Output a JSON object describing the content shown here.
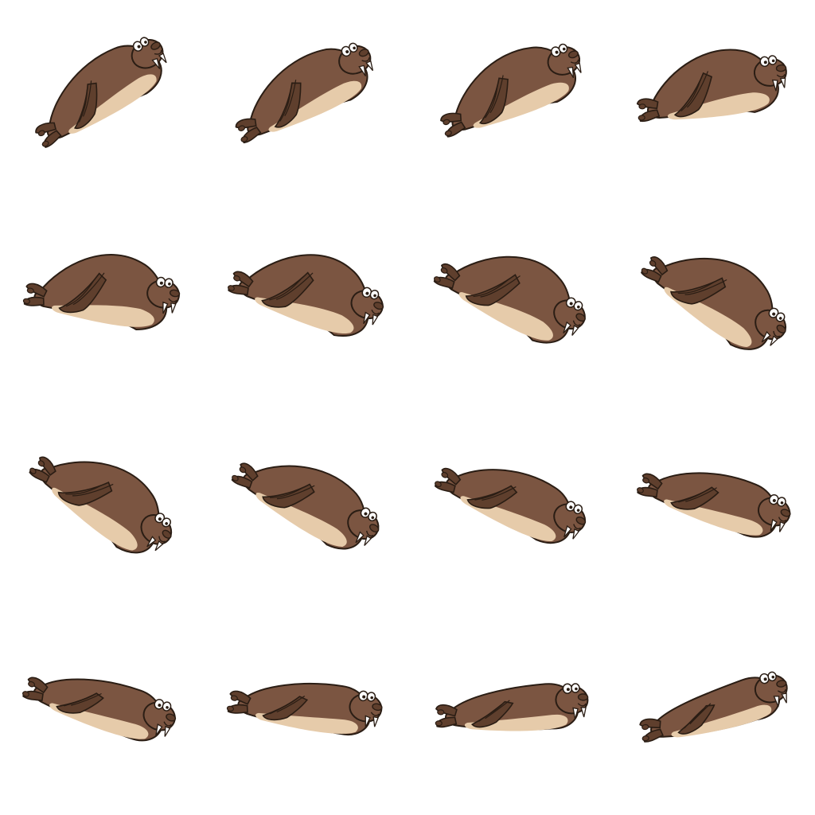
{
  "sprite_sheet": {
    "subject": "walrus",
    "columns": 4,
    "rows": 4,
    "frame_count": 16,
    "colors": {
      "background": "#ffffff",
      "body": "#7b5541",
      "body_dark": "#5f3f2d",
      "belly": "#e6cbaa",
      "outline": "#2a1d14",
      "eye_white": "#ffffff",
      "tusk": "#ffffff"
    }
  }
}
